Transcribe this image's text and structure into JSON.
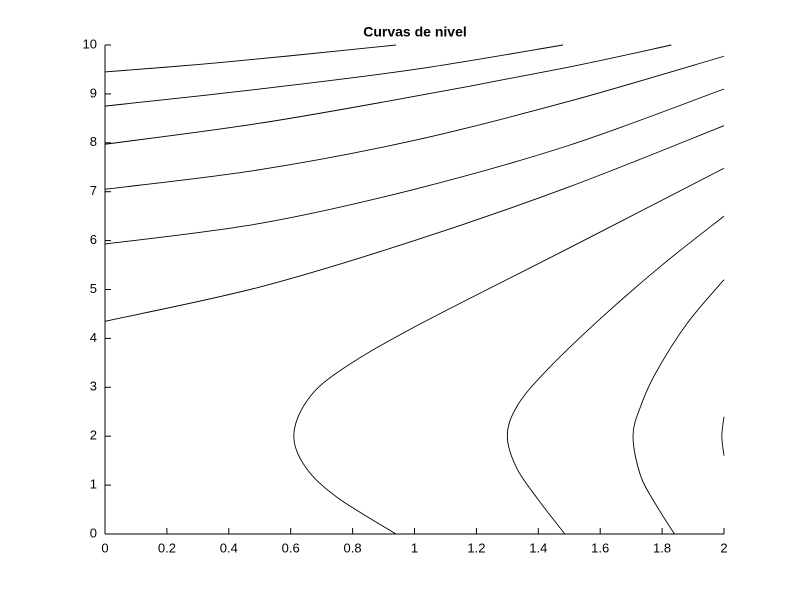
{
  "chart_data": {
    "type": "contour",
    "title": "Curvas de nivel",
    "color": "#000000",
    "xlim": [
      0,
      2
    ],
    "ylim": [
      0,
      10
    ],
    "xticks": [
      0,
      0.2,
      0.4,
      0.6,
      0.8,
      1,
      1.2,
      1.4,
      1.6,
      1.8,
      2
    ],
    "yticks": [
      0,
      1,
      2,
      3,
      4,
      5,
      6,
      7,
      8,
      9,
      10
    ],
    "series": [
      {
        "x": [
          0,
          0.3,
          0.6,
          0.94
        ],
        "values": [
          9.45,
          9.6,
          9.78,
          10
        ]
      },
      {
        "x": [
          0,
          0.5,
          1,
          1.48
        ],
        "values": [
          8.75,
          9.1,
          9.5,
          10
        ]
      },
      {
        "x": [
          0,
          0.5,
          1,
          1.5,
          1.83
        ],
        "values": [
          7.97,
          8.4,
          8.95,
          9.55,
          10
        ]
      },
      {
        "x": [
          0,
          0.5,
          1,
          1.5,
          2
        ],
        "values": [
          7.05,
          7.45,
          8.05,
          8.85,
          9.77
        ]
      },
      {
        "x": [
          0,
          0.5,
          1,
          1.5,
          2
        ],
        "values": [
          5.93,
          6.35,
          7.05,
          7.95,
          9.1
        ]
      },
      {
        "x": [
          0,
          0.5,
          1,
          1.5,
          2
        ],
        "values": [
          4.35,
          5.05,
          6.0,
          7.1,
          8.35
        ]
      },
      {
        "x": [
          2,
          1.5,
          0.99,
          0.75,
          0.65,
          0.61,
          0.65,
          0.75,
          0.94
        ],
        "values": [
          7.48,
          5.85,
          4.2,
          3.3,
          2.7,
          2,
          1.35,
          0.75,
          0
        ]
      },
      {
        "x": [
          2,
          1.8,
          1.6,
          1.42,
          1.33,
          1.3,
          1.33,
          1.4,
          1.486
        ],
        "values": [
          6.5,
          5.5,
          4.4,
          3.3,
          2.6,
          2,
          1.35,
          0.7,
          0
        ]
      },
      {
        "x": [
          2,
          1.88,
          1.78,
          1.73,
          1.706,
          1.73,
          1.78,
          1.84
        ],
        "values": [
          5.2,
          4.3,
          3.3,
          2.6,
          2,
          1.2,
          0.6,
          0
        ]
      },
      {
        "x": [
          2,
          1.993,
          2
        ],
        "values": [
          2.4,
          2,
          1.6
        ]
      }
    ]
  }
}
